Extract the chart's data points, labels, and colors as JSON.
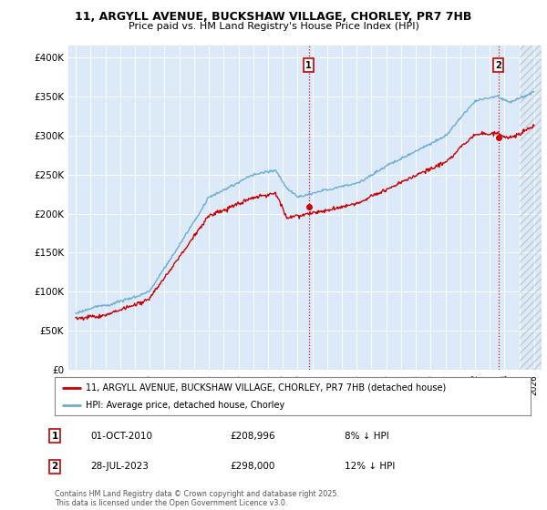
{
  "title_line1": "11, ARGYLL AVENUE, BUCKSHAW VILLAGE, CHORLEY, PR7 7HB",
  "title_line2": "Price paid vs. HM Land Registry's House Price Index (HPI)",
  "ylabel_ticks": [
    "£0",
    "£50K",
    "£100K",
    "£150K",
    "£200K",
    "£250K",
    "£300K",
    "£350K",
    "£400K"
  ],
  "ytick_vals": [
    0,
    50000,
    100000,
    150000,
    200000,
    250000,
    300000,
    350000,
    400000
  ],
  "ylim": [
    0,
    415000
  ],
  "xlim_start": 1994.5,
  "xlim_end": 2026.5,
  "hpi_color": "#6aaed6",
  "price_color": "#cc0000",
  "sale1_x": 2010.75,
  "sale1_y": 208996,
  "sale2_x": 2023.58,
  "sale2_y": 298000,
  "annotation1_label": "1",
  "annotation2_label": "2",
  "legend_label_red": "11, ARGYLL AVENUE, BUCKSHAW VILLAGE, CHORLEY, PR7 7HB (detached house)",
  "legend_label_blue": "HPI: Average price, detached house, Chorley",
  "note1_date": "01-OCT-2010",
  "note1_price": "£208,996",
  "note1_pct": "8% ↓ HPI",
  "note2_date": "28-JUL-2023",
  "note2_price": "£298,000",
  "note2_pct": "12% ↓ HPI",
  "footnote": "Contains HM Land Registry data © Crown copyright and database right 2025.\nThis data is licensed under the Open Government Licence v3.0.",
  "plot_bg_color": "#dce9f8",
  "hatch_start": 2025.0
}
